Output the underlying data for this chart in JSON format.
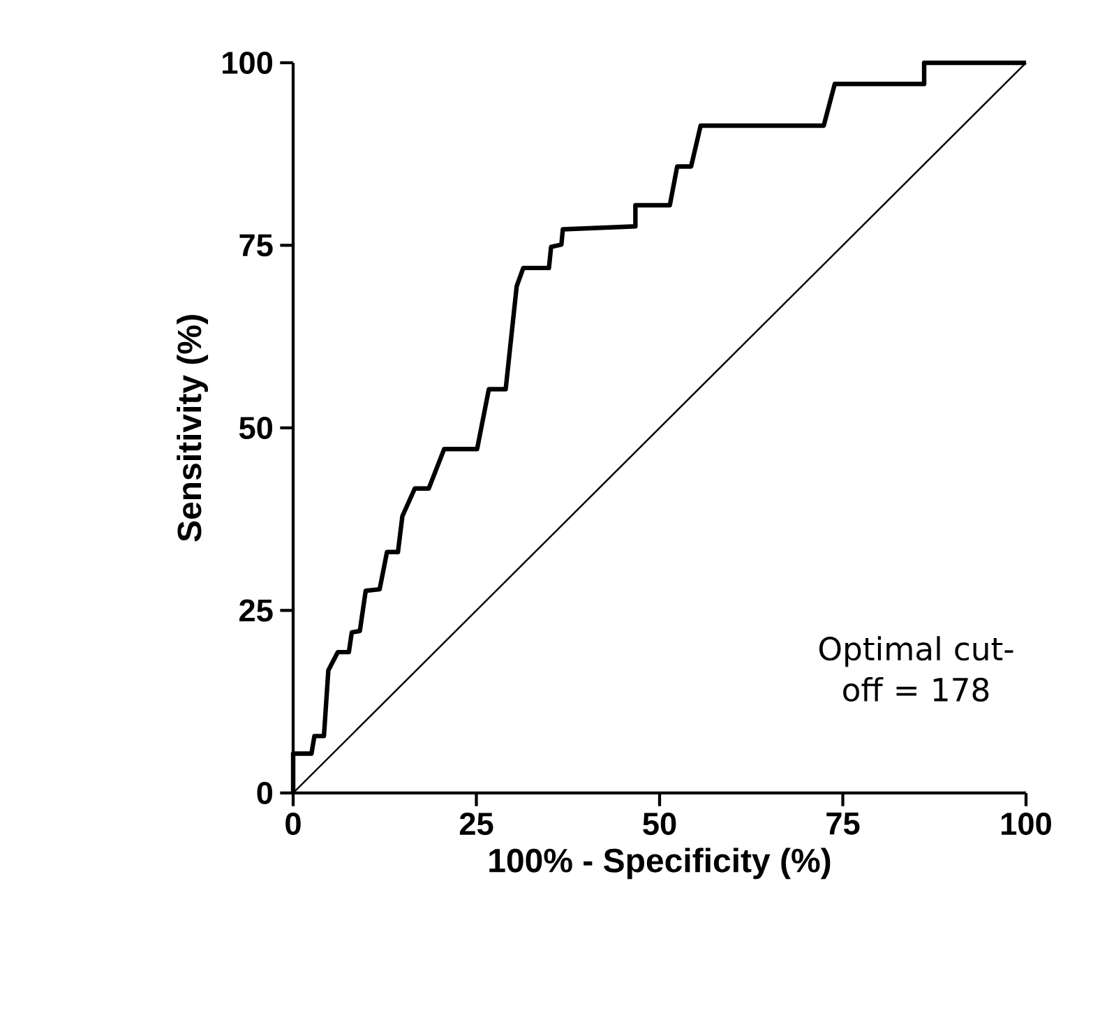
{
  "chart_data": {
    "type": "line",
    "xlabel": "100% - Specificity (%)",
    "ylabel": "Sensitivity (%)",
    "xlim": [
      0,
      100
    ],
    "ylim": [
      0,
      100
    ],
    "xticks": [
      0,
      25,
      50,
      75,
      100
    ],
    "yticks": [
      0,
      25,
      50,
      75,
      100
    ],
    "grid": false,
    "marker": "none",
    "line_style": "solid",
    "annotations": [
      "Optimal cut-off = 178"
    ],
    "series": [
      {
        "color": "#000000",
        "x": [
          0,
          0,
          2.5,
          2.9,
          4.2,
          4.8,
          6.1,
          7.6,
          8,
          9.1,
          9.9,
          11.8,
          12.8,
          14.3,
          14.9,
          16.6,
          18.5,
          20.6,
          25.1,
          26.7,
          29,
          30.5,
          31.4,
          34.9,
          35.2,
          36.6,
          36.8,
          46.7,
          46.7,
          51.4,
          52.4,
          54.3,
          55.6,
          72.4,
          73.9,
          86.1,
          86.1,
          100
        ],
        "values": [
          0,
          5.4,
          5.4,
          7.8,
          7.8,
          16.8,
          19.3,
          19.3,
          22,
          22.2,
          27.7,
          27.9,
          33,
          33,
          37.9,
          41.7,
          41.7,
          47.1,
          47.1,
          55.3,
          55.3,
          69.4,
          71.9,
          71.9,
          74.8,
          75.1,
          77.2,
          77.6,
          80.5,
          80.5,
          85.8,
          85.8,
          91.4,
          91.4,
          97.1,
          97.1,
          100,
          100
        ]
      },
      {
        "color": "#000000",
        "x": [
          0,
          100
        ],
        "values": [
          0,
          100
        ]
      }
    ]
  }
}
